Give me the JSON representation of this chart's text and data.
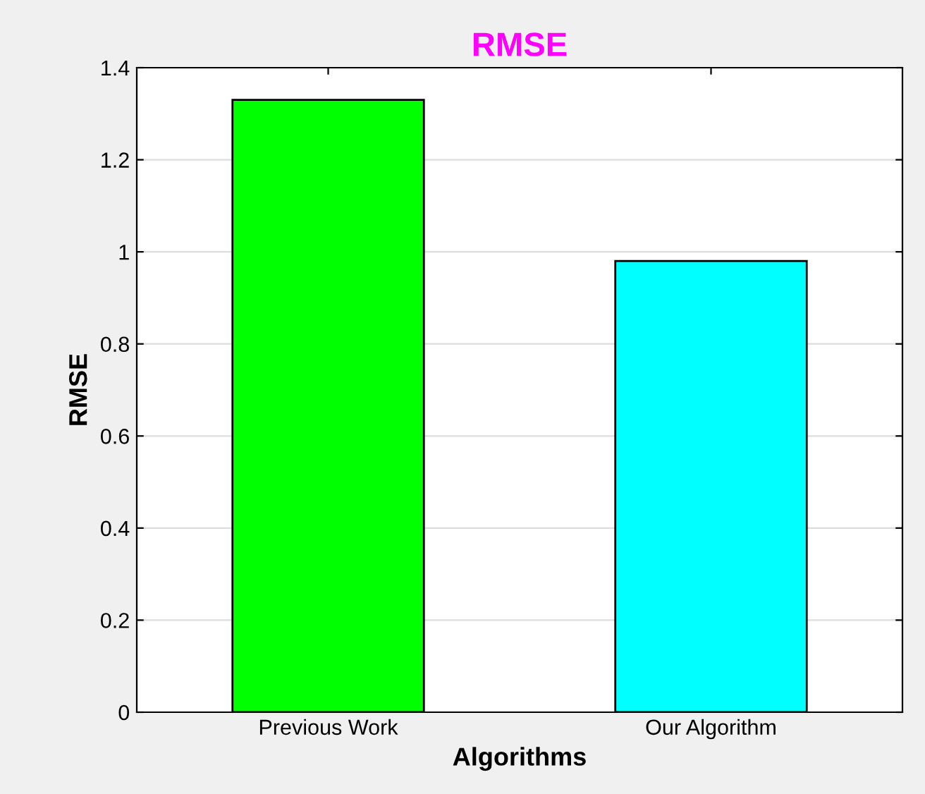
{
  "chart_data": {
    "type": "bar",
    "title": "RMSE",
    "xlabel": "Algorithms",
    "ylabel": "RMSE",
    "categories": [
      "Previous Work",
      "Our Algorithm"
    ],
    "series": [
      {
        "colors": [
          "#00ff00",
          "#00ffff"
        ],
        "values": [
          1.33,
          0.98
        ]
      }
    ],
    "ylim": [
      0,
      1.4
    ],
    "yticks": [
      0,
      0.2,
      0.4,
      0.6,
      0.8,
      1,
      1.2,
      1.4
    ],
    "grid": "y",
    "legend": false
  }
}
